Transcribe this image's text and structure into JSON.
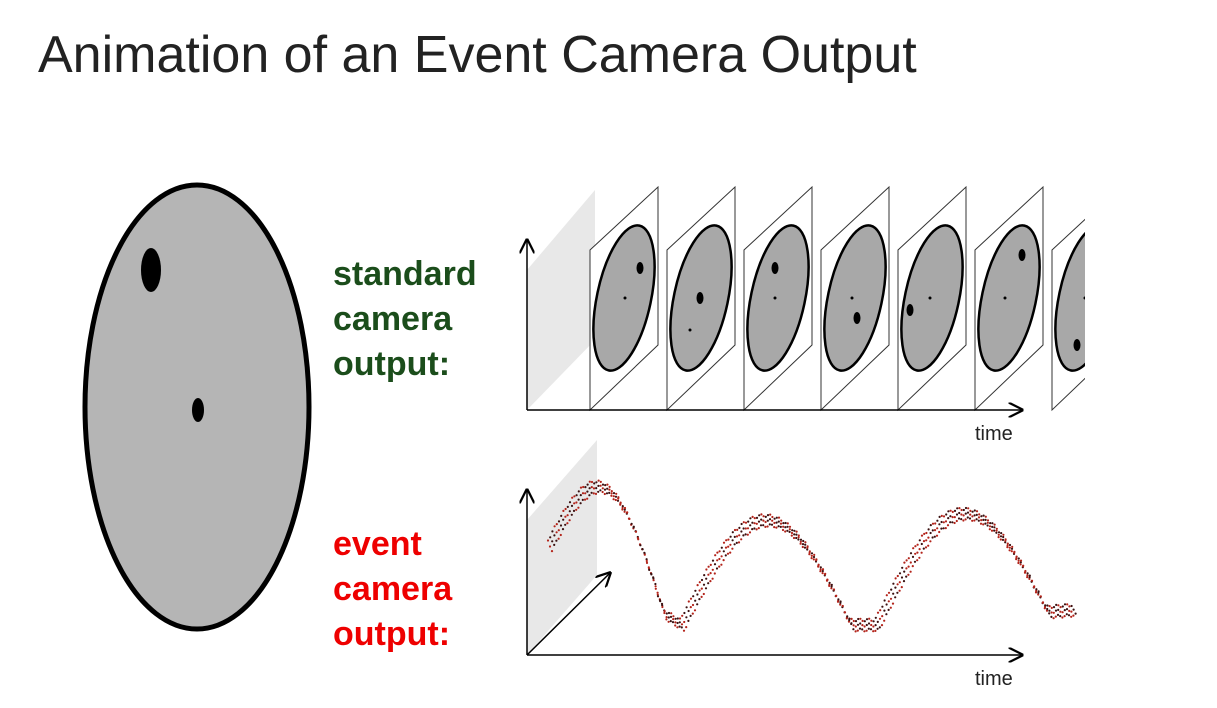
{
  "title": "Animation of an Event Camera Output",
  "standard_label": [
    "standard",
    "camera",
    "output:"
  ],
  "event_label": [
    "event",
    "camera",
    "output:"
  ],
  "time_labels": [
    "time",
    "time"
  ]
}
